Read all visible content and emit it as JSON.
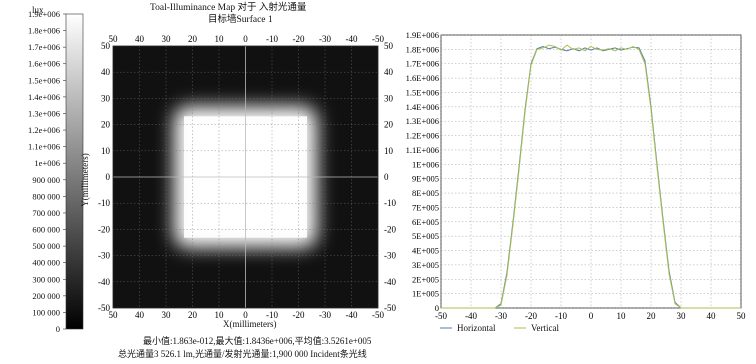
{
  "chart_data": [
    {
      "type": "heatmap",
      "title": "Toal-Illuminance Map 对于 入射光通量",
      "subtitle": "目标墙Surface 1",
      "xlabel": "X(millimeters)",
      "ylabel": "Y(millimeters)",
      "xlim": [
        50,
        -50
      ],
      "ylim": [
        -50,
        50
      ],
      "x_ticks": [
        "50",
        "40",
        "30",
        "20",
        "10",
        "0",
        "-10",
        "-20",
        "-30",
        "-40",
        "-50"
      ],
      "y_ticks": [
        "50",
        "40",
        "30",
        "20",
        "10",
        "0",
        "-10",
        "-20",
        "-30",
        "-40",
        "-50"
      ],
      "illuminated_region": {
        "x": [
          -27,
          27
        ],
        "y": [
          -27,
          27
        ],
        "peak": 1843600
      },
      "colorbar": {
        "unit": "lux",
        "labels": [
          "1.9e+006",
          "1.8e+006",
          "1.7e+006",
          "1.6e+006",
          "1.5e+006",
          "1.4e+006",
          "1.3e+006",
          "1.2e+006",
          "1.1e+006",
          "1e+006",
          "900 000",
          "800 000",
          "700 000",
          "600 000",
          "500 000",
          "400 000",
          "300 000",
          "200 000",
          "100 000",
          "0"
        ],
        "range": [
          0,
          1900000
        ]
      },
      "stats_line1": "最小值:1.863e-012,最大值:1.8436e+006,平均值:3.5261e+005",
      "stats_line2": "总光通量3 526.1 lm,光通量/发射光通量:1,900 000 Incident条光线"
    },
    {
      "type": "line",
      "xlim": [
        -50,
        50
      ],
      "ylim": [
        0,
        1900000
      ],
      "x_ticks": [
        "-50",
        "-40",
        "-30",
        "-20",
        "-10",
        "0",
        "10",
        "20",
        "30",
        "40",
        "50"
      ],
      "y_ticks": [
        "0",
        "1E+005",
        "2E+005",
        "3E+005",
        "4E+005",
        "5E+005",
        "6E+005",
        "7E+005",
        "8E+005",
        "9E+005",
        "1E+006",
        "1.1E+006",
        "1.2E+006",
        "1.3E+006",
        "1.4E+006",
        "1.5E+006",
        "1.6E+006",
        "1.7E+006",
        "1.8E+006",
        "1.9E+006"
      ],
      "legend_position": "bottom-left",
      "series": [
        {
          "name": "Horizontal",
          "color": "#5a7ab0",
          "x": [
            -50,
            -32,
            -30,
            -28,
            -26,
            -24,
            -22,
            -20,
            -18,
            -16,
            -14,
            -12,
            -10,
            -8,
            -6,
            -4,
            -2,
            0,
            2,
            4,
            6,
            8,
            10,
            12,
            14,
            16,
            18,
            20,
            22,
            24,
            26,
            28,
            30,
            32,
            50
          ],
          "y": [
            0,
            0,
            30000,
            250000,
            600000,
            980000,
            1380000,
            1700000,
            1805000,
            1820000,
            1805000,
            1815000,
            1800000,
            1790000,
            1805000,
            1790000,
            1810000,
            1795000,
            1810000,
            1790000,
            1800000,
            1810000,
            1795000,
            1805000,
            1815000,
            1810000,
            1720000,
            1400000,
            1000000,
            620000,
            260000,
            40000,
            0,
            0,
            0
          ]
        },
        {
          "name": "Vertical",
          "color": "#a8c24e",
          "x": [
            -50,
            -32,
            -30,
            -28,
            -26,
            -24,
            -22,
            -20,
            -18,
            -16,
            -14,
            -12,
            -10,
            -8,
            -6,
            -4,
            -2,
            0,
            2,
            4,
            6,
            8,
            10,
            12,
            14,
            16,
            18,
            20,
            22,
            24,
            26,
            28,
            30,
            32,
            50
          ],
          "y": [
            0,
            0,
            20000,
            230000,
            580000,
            960000,
            1360000,
            1690000,
            1800000,
            1810000,
            1830000,
            1820000,
            1795000,
            1830000,
            1800000,
            1810000,
            1790000,
            1820000,
            1800000,
            1795000,
            1805000,
            1790000,
            1810000,
            1800000,
            1820000,
            1800000,
            1700000,
            1380000,
            980000,
            600000,
            240000,
            30000,
            0,
            0,
            0
          ]
        }
      ]
    }
  ]
}
